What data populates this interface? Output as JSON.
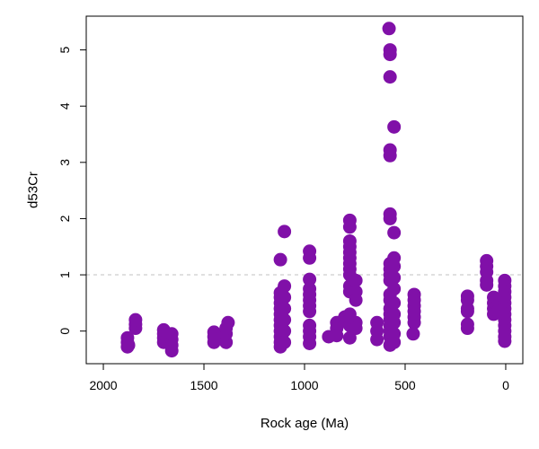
{
  "chart_data": {
    "type": "scatter",
    "xlabel": "Rock age (Ma)",
    "ylabel": "d53Cr",
    "xlim": [
      2085,
      -85
    ],
    "ylim": [
      -0.58,
      5.6
    ],
    "x_reversed": true,
    "xticks": [
      {
        "value": 2000,
        "label": "2000"
      },
      {
        "value": 1500,
        "label": "1500"
      },
      {
        "value": 1000,
        "label": "1000"
      },
      {
        "value": 500,
        "label": "500"
      },
      {
        "value": 0,
        "label": "0"
      }
    ],
    "yticks": [
      {
        "value": 0,
        "label": "0"
      },
      {
        "value": 1,
        "label": "1"
      },
      {
        "value": 2,
        "label": "2"
      },
      {
        "value": 3,
        "label": "3"
      },
      {
        "value": 4,
        "label": "4"
      },
      {
        "value": 5,
        "label": "5"
      }
    ],
    "reference_line": {
      "y": 1,
      "style": "dashed",
      "color": "#c0c0c0"
    },
    "point_color": "#8010a8",
    "grid": false,
    "points": [
      {
        "x": 1880,
        "y": -0.28
      },
      {
        "x": 1880,
        "y": -0.2
      },
      {
        "x": 1880,
        "y": -0.12
      },
      {
        "x": 1875,
        "y": -0.25
      },
      {
        "x": 1840,
        "y": 0.05
      },
      {
        "x": 1840,
        "y": 0.12
      },
      {
        "x": 1840,
        "y": 0.2
      },
      {
        "x": 1700,
        "y": -0.2
      },
      {
        "x": 1700,
        "y": -0.12
      },
      {
        "x": 1700,
        "y": -0.05
      },
      {
        "x": 1700,
        "y": 0.02
      },
      {
        "x": 1660,
        "y": -0.35
      },
      {
        "x": 1660,
        "y": -0.25
      },
      {
        "x": 1660,
        "y": -0.15
      },
      {
        "x": 1660,
        "y": -0.05
      },
      {
        "x": 1450,
        "y": -0.2
      },
      {
        "x": 1450,
        "y": -0.1
      },
      {
        "x": 1450,
        "y": -0.02
      },
      {
        "x": 1420,
        "y": -0.12
      },
      {
        "x": 1390,
        "y": -0.2
      },
      {
        "x": 1390,
        "y": -0.05
      },
      {
        "x": 1390,
        "y": 0.05
      },
      {
        "x": 1380,
        "y": 0.15
      },
      {
        "x": 1120,
        "y": 1.27
      },
      {
        "x": 1120,
        "y": -0.28
      },
      {
        "x": 1120,
        "y": -0.2
      },
      {
        "x": 1120,
        "y": -0.1
      },
      {
        "x": 1120,
        "y": 0.0
      },
      {
        "x": 1120,
        "y": 0.1
      },
      {
        "x": 1120,
        "y": 0.2
      },
      {
        "x": 1120,
        "y": 0.3
      },
      {
        "x": 1120,
        "y": 0.4
      },
      {
        "x": 1120,
        "y": 0.5
      },
      {
        "x": 1120,
        "y": 0.6
      },
      {
        "x": 1120,
        "y": 0.68
      },
      {
        "x": 1100,
        "y": 1.77
      },
      {
        "x": 1100,
        "y": 0.8
      },
      {
        "x": 1100,
        "y": 0.6
      },
      {
        "x": 1100,
        "y": 0.4
      },
      {
        "x": 1100,
        "y": 0.2
      },
      {
        "x": 1100,
        "y": 0.0
      },
      {
        "x": 1100,
        "y": -0.2
      },
      {
        "x": 975,
        "y": 1.42
      },
      {
        "x": 975,
        "y": 1.3
      },
      {
        "x": 975,
        "y": 0.92
      },
      {
        "x": 975,
        "y": 0.75
      },
      {
        "x": 975,
        "y": 0.65
      },
      {
        "x": 975,
        "y": 0.55
      },
      {
        "x": 975,
        "y": 0.45
      },
      {
        "x": 975,
        "y": 0.35
      },
      {
        "x": 975,
        "y": 0.1
      },
      {
        "x": 975,
        "y": 0.0
      },
      {
        "x": 975,
        "y": -0.1
      },
      {
        "x": 975,
        "y": -0.22
      },
      {
        "x": 880,
        "y": -0.1
      },
      {
        "x": 840,
        "y": 0.15
      },
      {
        "x": 840,
        "y": 0.05
      },
      {
        "x": 840,
        "y": -0.08
      },
      {
        "x": 800,
        "y": 0.18
      },
      {
        "x": 800,
        "y": 0.25
      },
      {
        "x": 775,
        "y": 1.97
      },
      {
        "x": 775,
        "y": 1.85
      },
      {
        "x": 775,
        "y": 1.6
      },
      {
        "x": 775,
        "y": 1.5
      },
      {
        "x": 775,
        "y": 1.4
      },
      {
        "x": 775,
        "y": 1.3
      },
      {
        "x": 775,
        "y": 1.2
      },
      {
        "x": 775,
        "y": 1.1
      },
      {
        "x": 775,
        "y": 1.0
      },
      {
        "x": 775,
        "y": 0.8
      },
      {
        "x": 775,
        "y": 0.7
      },
      {
        "x": 775,
        "y": 0.3
      },
      {
        "x": 775,
        "y": 0.2
      },
      {
        "x": 775,
        "y": 0.1
      },
      {
        "x": 775,
        "y": -0.12
      },
      {
        "x": 745,
        "y": 0.9
      },
      {
        "x": 745,
        "y": 0.7
      },
      {
        "x": 745,
        "y": 0.55
      },
      {
        "x": 745,
        "y": 0.15
      },
      {
        "x": 745,
        "y": 0.05
      },
      {
        "x": 640,
        "y": 0.15
      },
      {
        "x": 640,
        "y": 0.0
      },
      {
        "x": 640,
        "y": -0.15
      },
      {
        "x": 580,
        "y": 5.38
      },
      {
        "x": 575,
        "y": 5.0
      },
      {
        "x": 575,
        "y": 4.92
      },
      {
        "x": 575,
        "y": 4.52
      },
      {
        "x": 575,
        "y": 3.22
      },
      {
        "x": 575,
        "y": 3.12
      },
      {
        "x": 575,
        "y": 2.08
      },
      {
        "x": 575,
        "y": 2.0
      },
      {
        "x": 575,
        "y": 1.2
      },
      {
        "x": 575,
        "y": 1.1
      },
      {
        "x": 575,
        "y": 1.0
      },
      {
        "x": 575,
        "y": 0.9
      },
      {
        "x": 575,
        "y": 0.65
      },
      {
        "x": 575,
        "y": 0.55
      },
      {
        "x": 575,
        "y": 0.4
      },
      {
        "x": 575,
        "y": 0.3
      },
      {
        "x": 575,
        "y": 0.2
      },
      {
        "x": 575,
        "y": 0.1
      },
      {
        "x": 575,
        "y": 0.0
      },
      {
        "x": 575,
        "y": -0.1
      },
      {
        "x": 575,
        "y": -0.25
      },
      {
        "x": 555,
        "y": 3.63
      },
      {
        "x": 555,
        "y": 1.75
      },
      {
        "x": 555,
        "y": 1.3
      },
      {
        "x": 555,
        "y": 1.15
      },
      {
        "x": 555,
        "y": 0.95
      },
      {
        "x": 555,
        "y": 0.75
      },
      {
        "x": 555,
        "y": 0.5
      },
      {
        "x": 555,
        "y": 0.3
      },
      {
        "x": 555,
        "y": 0.15
      },
      {
        "x": 555,
        "y": -0.05
      },
      {
        "x": 555,
        "y": -0.2
      },
      {
        "x": 455,
        "y": 0.65
      },
      {
        "x": 455,
        "y": 0.55
      },
      {
        "x": 455,
        "y": 0.45
      },
      {
        "x": 455,
        "y": 0.35
      },
      {
        "x": 455,
        "y": 0.25
      },
      {
        "x": 455,
        "y": 0.15
      },
      {
        "x": 460,
        "y": -0.05
      },
      {
        "x": 190,
        "y": 0.62
      },
      {
        "x": 190,
        "y": 0.55
      },
      {
        "x": 190,
        "y": 0.4
      },
      {
        "x": 190,
        "y": 0.35
      },
      {
        "x": 190,
        "y": 0.12
      },
      {
        "x": 190,
        "y": 0.05
      },
      {
        "x": 95,
        "y": 1.25
      },
      {
        "x": 95,
        "y": 1.15
      },
      {
        "x": 95,
        "y": 1.05
      },
      {
        "x": 95,
        "y": 0.9
      },
      {
        "x": 95,
        "y": 0.82
      },
      {
        "x": 60,
        "y": 0.6
      },
      {
        "x": 60,
        "y": 0.5
      },
      {
        "x": 60,
        "y": 0.4
      },
      {
        "x": 60,
        "y": 0.3
      },
      {
        "x": 40,
        "y": 0.55
      },
      {
        "x": 40,
        "y": 0.45
      },
      {
        "x": 40,
        "y": 0.35
      },
      {
        "x": 5,
        "y": 0.9
      },
      {
        "x": 5,
        "y": 0.8
      },
      {
        "x": 5,
        "y": 0.7
      },
      {
        "x": 5,
        "y": 0.6
      },
      {
        "x": 5,
        "y": 0.5
      },
      {
        "x": 5,
        "y": 0.4
      },
      {
        "x": 5,
        "y": 0.3
      },
      {
        "x": 5,
        "y": 0.2
      },
      {
        "x": 5,
        "y": 0.1
      },
      {
        "x": 5,
        "y": 0.0
      },
      {
        "x": 5,
        "y": -0.1
      },
      {
        "x": 5,
        "y": -0.18
      }
    ]
  }
}
